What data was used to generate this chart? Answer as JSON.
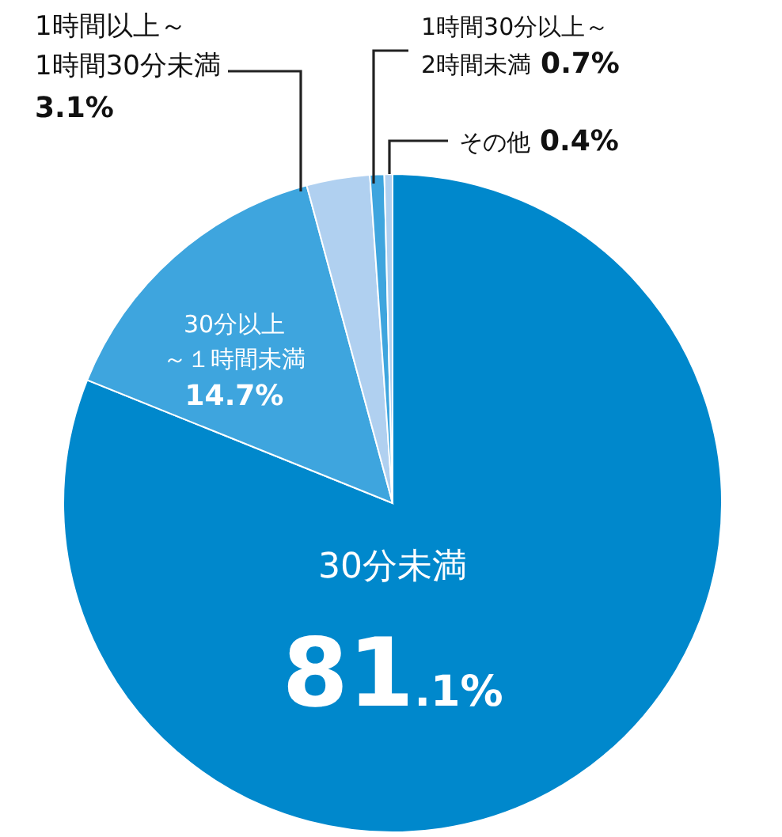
{
  "chart_data": {
    "type": "pie",
    "categories": [
      "30分未満",
      "30分以上～１時間未満",
      "1時間以上～1時間30分未満",
      "1時間30分以上～2時間未満",
      "その他"
    ],
    "values": [
      81.1,
      14.7,
      3.1,
      0.7,
      0.4
    ],
    "value_labels": [
      "81.1%",
      "14.7%",
      "3.1%",
      "0.7%",
      "0.4%"
    ],
    "colors": [
      "#0088cc",
      "#3ea5de",
      "#b0d0f0",
      "#3ea5de",
      "#b0d0f0"
    ]
  }
}
